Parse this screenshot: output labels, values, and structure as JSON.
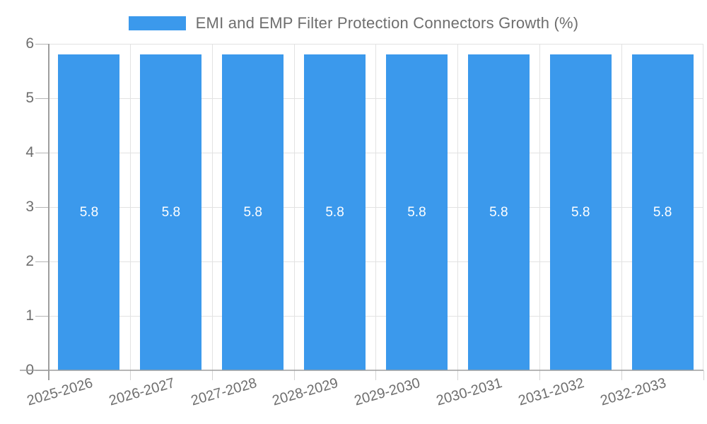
{
  "chart_data": {
    "type": "bar",
    "title": "EMI and EMP Filter Protection Connectors Growth (%)",
    "categories": [
      "2025-2026",
      "2026-2027",
      "2027-2028",
      "2028-2029",
      "2029-2030",
      "2030-2031",
      "2031-2032",
      "2032-2033"
    ],
    "values": [
      5.8,
      5.8,
      5.8,
      5.8,
      5.8,
      5.8,
      5.8,
      5.8
    ],
    "xlabel": "",
    "ylabel": "",
    "ylim": [
      0,
      6
    ],
    "yticks": [
      0,
      1,
      2,
      3,
      4,
      5,
      6
    ],
    "grid": true,
    "legend_position": "top",
    "bar_labels_shown": true,
    "colors": {
      "bar": "#3B99EC",
      "text": "#6E6E6E",
      "grid": "#E2E2E2",
      "axis": "#9E9E9E",
      "bar_label": "#FFFFFF"
    }
  }
}
